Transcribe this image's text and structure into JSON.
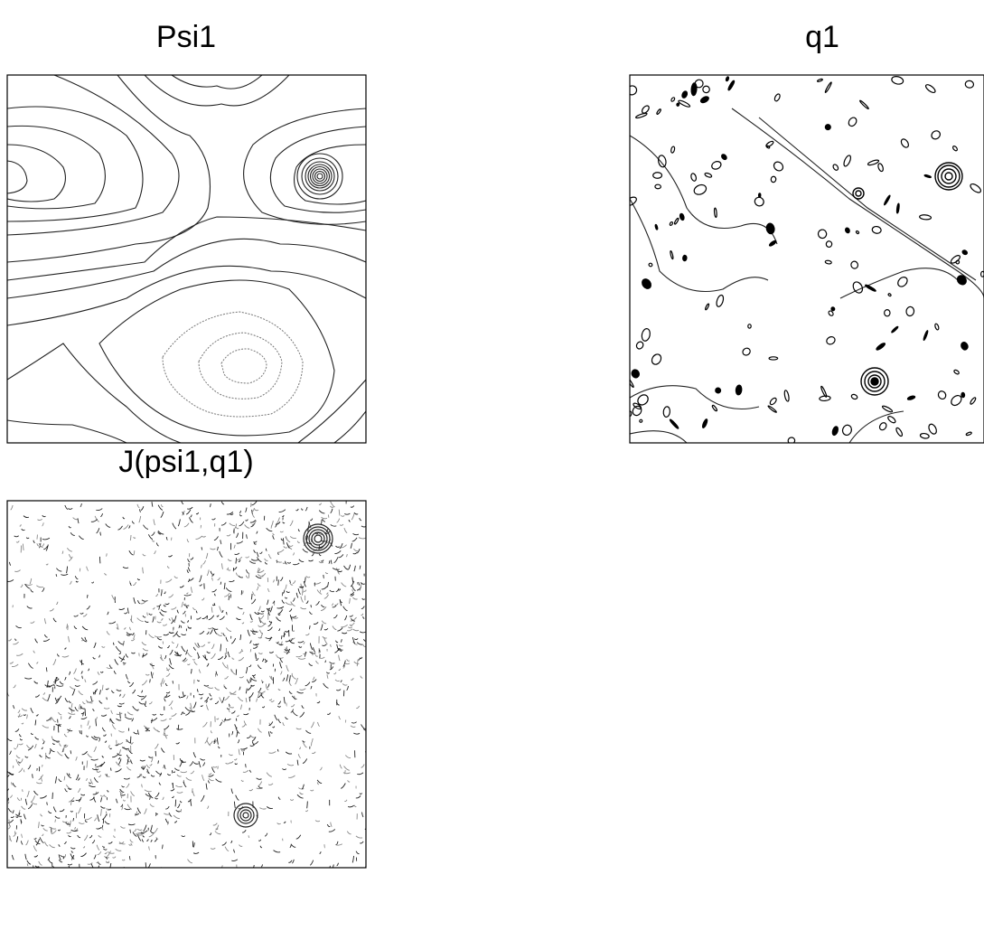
{
  "panels": [
    {
      "title": "Psi1"
    },
    {
      "title": "q1"
    },
    {
      "title": "J(psi1,q1)"
    }
  ]
}
